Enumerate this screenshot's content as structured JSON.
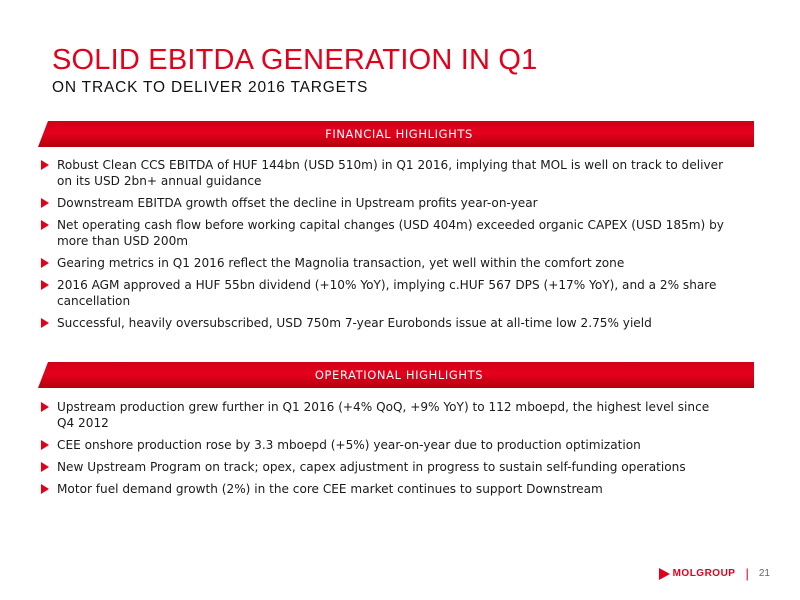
{
  "slide": {
    "title": "SOLID EBITDA GENERATION IN Q1",
    "subtitle": "ON TRACK TO DELIVER 2016 TARGETS"
  },
  "sections": {
    "financial": {
      "heading": "FINANCIAL HIGHLIGHTS",
      "items": [
        "Robust Clean CCS EBITDA of HUF 144bn (USD 510m) in Q1 2016, implying that MOL is well on track to deliver on its USD 2bn+ annual guidance",
        "Downstream EBITDA growth offset the decline in Upstream profits year-on-year",
        "Net operating cash flow before working capital changes (USD 404m) exceeded organic CAPEX (USD 185m) by more than USD 200m",
        "Gearing metrics in Q1 2016 reflect the Magnolia transaction, yet well within the comfort zone",
        "2016 AGM approved a HUF 55bn dividend (+10% YoY), implying c.HUF 567 DPS (+17% YoY), and a 2% share cancellation",
        "Successful, heavily oversubscribed, USD 750m 7-year Eurobonds issue at all-time low 2.75% yield"
      ]
    },
    "operational": {
      "heading": "OPERATIONAL HIGHLIGHTS",
      "items": [
        "Upstream production grew further in Q1 2016 (+4% QoQ, +9% YoY) to 112 mboepd, the highest level since Q4 2012",
        "CEE onshore production rose by 3.3 mboepd (+5%) year-on-year due to production optimization",
        "New Upstream Program on track; opex, capex adjustment in progress to sustain self-funding operations",
        "Motor fuel demand growth (2%) in the core CEE market continues to support Downstream"
      ]
    }
  },
  "footer": {
    "logo_text": "MOLGROUP",
    "separator": "|",
    "page_number": "21"
  },
  "colors": {
    "accent": "#e3001b",
    "text": "#1a1a1a"
  },
  "icons": {
    "bullet": "right-triangle",
    "logo": "right-triangle"
  }
}
